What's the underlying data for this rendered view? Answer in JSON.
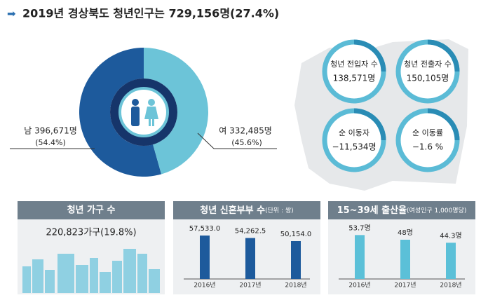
{
  "header": {
    "title": "2019년 경상북도 청년인구는 729,156명(27.4%)"
  },
  "chart_data": [
    {
      "type": "pie",
      "labels": [
        "남 396,671명",
        "여 332,485명"
      ],
      "values": [
        54.4,
        45.6
      ],
      "value_labels": [
        "(54.4%)",
        "(45.6%)"
      ],
      "colors": [
        "#1d5a9c",
        "#6cc4d8"
      ]
    },
    {
      "type": "bar",
      "title": "청년 신혼부부 수",
      "subtitle": "(단위 : 쌍)",
      "categories": [
        "2016년",
        "2017년",
        "2018년"
      ],
      "values": [
        57533.0,
        54262.5,
        50154.0
      ],
      "value_labels": [
        "57,533.0",
        "54,262.5",
        "50,154.0"
      ],
      "ylim": [
        0,
        65000
      ],
      "color": "#1d5a9c"
    },
    {
      "type": "bar",
      "title": "15~39세 출산율",
      "subtitle": "(여성인구 1,000명당)",
      "categories": [
        "2016년",
        "2017년",
        "2018년"
      ],
      "values": [
        53.7,
        48,
        44.3
      ],
      "value_labels": [
        "53.7명",
        "48명",
        "44.3명"
      ],
      "ylim": [
        0,
        60
      ],
      "color": "#5bc0d8"
    }
  ],
  "stats": [
    {
      "label": "청년 전입자 수",
      "value": "138,571명"
    },
    {
      "label": "청년 전출자 수",
      "value": "150,105명"
    },
    {
      "label": "순 이동자",
      "value": "−11,534명"
    },
    {
      "label": "순 이동률",
      "value": "−1.6 %"
    }
  ],
  "household": {
    "title": "청년 가구 수",
    "value": "220,823가구(19.8%)"
  }
}
